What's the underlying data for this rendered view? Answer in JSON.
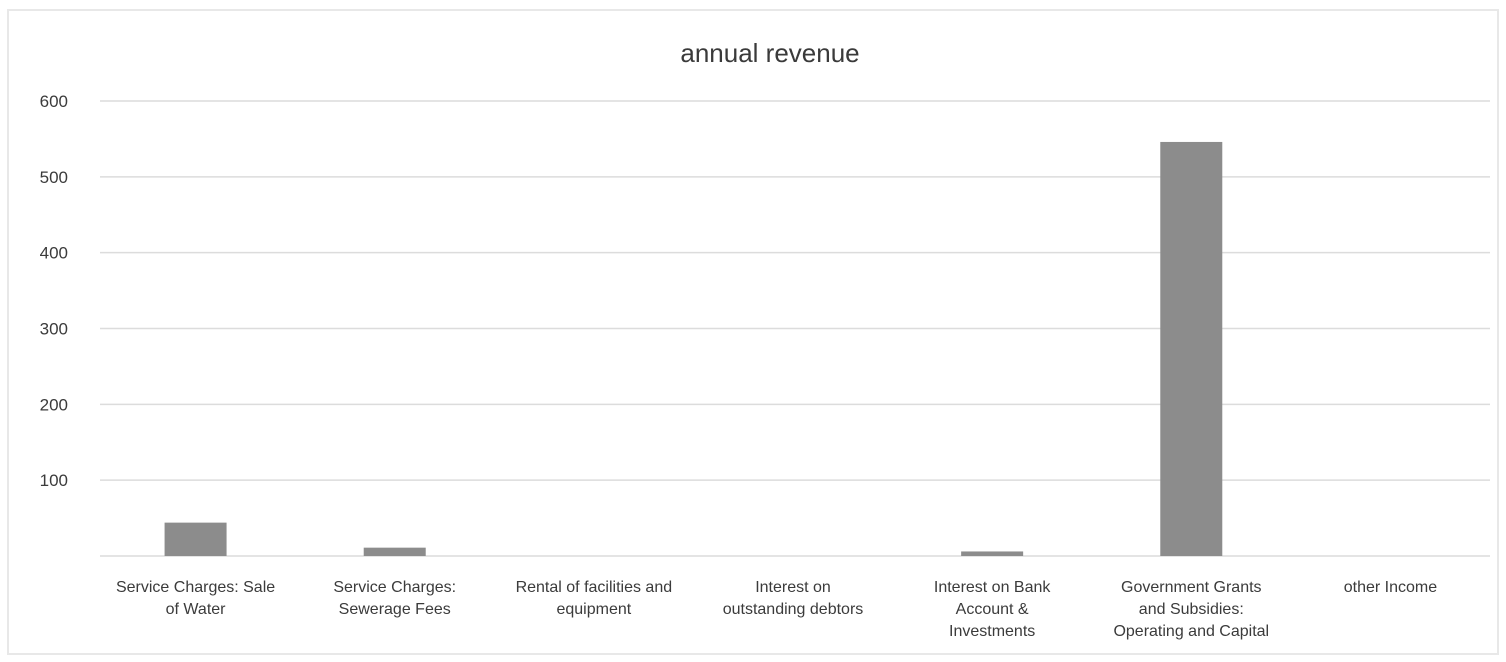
{
  "chart_data": {
    "type": "bar",
    "title": "annual revenue",
    "xlabel": "",
    "ylabel": "",
    "ylim": [
      0,
      600
    ],
    "yticks": [
      "100",
      "200",
      "300",
      "400",
      "500",
      "600"
    ],
    "grid": true,
    "categories": [
      [
        "Service Charges: Sale",
        "of Water"
      ],
      [
        "Service Charges:",
        "Sewerage Fees"
      ],
      [
        "Rental of facilities and",
        "equipment"
      ],
      [
        "Interest on",
        "outstanding debtors"
      ],
      [
        "Interest on Bank",
        "Account &",
        "Investments"
      ],
      [
        "Government Grants",
        "and Subsidies:",
        "Operating and Capital"
      ],
      [
        "other Income"
      ]
    ],
    "values": [
      44,
      11,
      0,
      0,
      6,
      546,
      0
    ],
    "colors": {
      "bar": "#8c8c8c",
      "grid": "#dcdcdc",
      "text": "#3b3b3b"
    }
  }
}
